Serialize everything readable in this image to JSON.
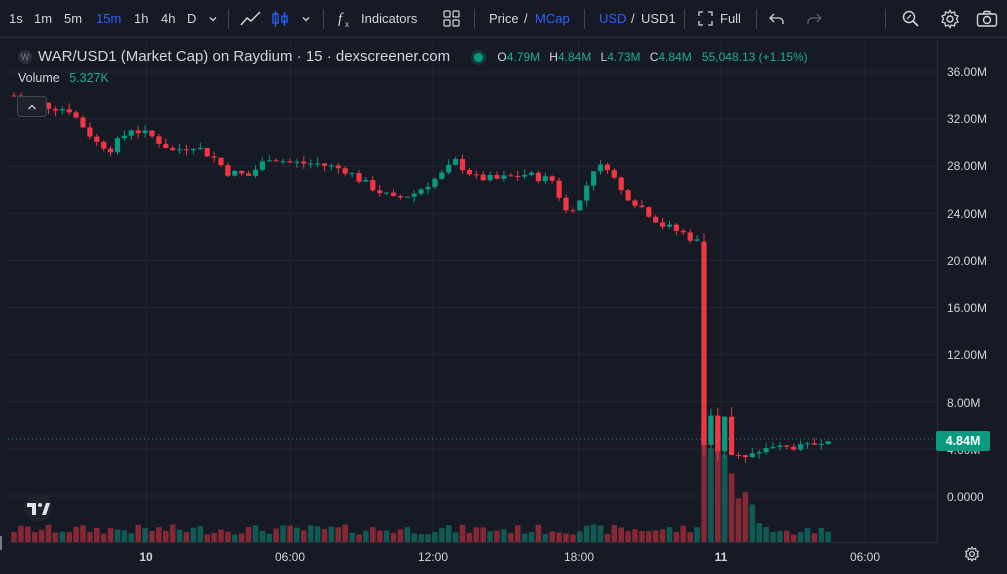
{
  "toolbar": {
    "intervals": [
      "1s",
      "1m",
      "5m",
      "15m",
      "1h",
      "4h",
      "D"
    ],
    "active_interval": "15m",
    "indicators_label": "Indicators",
    "price_label": "Price",
    "slash": "/",
    "mcap_label": "MCap",
    "usd_label": "USD",
    "usd1_label": "USD1",
    "full_label": "Full",
    "icons": [
      "chevron-down-icon",
      "line-chart-icon",
      "candlestick-icon",
      "chevron-down-icon",
      "fx-icon",
      "layout-icon",
      "fullscreen-icon",
      "undo-icon",
      "redo-icon",
      "search-zoom-icon",
      "gear-icon",
      "camera-icon"
    ]
  },
  "legend": {
    "symbol_icon": "W",
    "title": "WAR/USD1 (Market Cap) on Raydium · 15 · dexscreener.com",
    "o_label": "O",
    "o_value": "4.79M",
    "h_label": "H",
    "h_value": "4.84M",
    "l_label": "L",
    "l_value": "4.73M",
    "c_label": "C",
    "c_value": "4.84M",
    "change": "55,048.13 (+1.15%)"
  },
  "volume": {
    "label": "Volume",
    "value": "5.327K"
  },
  "price_axis": {
    "ticks": [
      "36.00M",
      "32.00M",
      "28.00M",
      "24.00M",
      "20.00M",
      "16.00M",
      "12.00M",
      "8.00M",
      "4.00M",
      "0.0000"
    ],
    "last_price": "4.84M"
  },
  "time_axis": {
    "ticks": [
      {
        "label": "10",
        "bold": true
      },
      {
        "label": "06:00",
        "bold": false
      },
      {
        "label": "12:00",
        "bold": false
      },
      {
        "label": "18:00",
        "bold": false
      },
      {
        "label": "11",
        "bold": true
      },
      {
        "label": "06:00",
        "bold": false
      }
    ]
  },
  "colors": {
    "up": "#089981",
    "down": "#f23645",
    "background": "#161a25",
    "grid": "#232632",
    "accent": "#2962ff"
  },
  "chart_data": {
    "type": "candlestick",
    "y_unit": "market cap (USD)",
    "ylim": [
      -2000000,
      38000000
    ],
    "interval": "15m",
    "x_start": "9th 20:00",
    "keypoints": [
      [
        0,
        34000000
      ],
      [
        5,
        33100000
      ],
      [
        8,
        32800000
      ],
      [
        12,
        30000000
      ],
      [
        14,
        29500000
      ],
      [
        17,
        31200000
      ],
      [
        20,
        30500000
      ],
      [
        23,
        29300000
      ],
      [
        26,
        29800000
      ],
      [
        29,
        28700000
      ],
      [
        31,
        27500000
      ],
      [
        34,
        27200000
      ],
      [
        37,
        28800000
      ],
      [
        40,
        28300000
      ],
      [
        44,
        28200000
      ],
      [
        48,
        27700000
      ],
      [
        51,
        26500000
      ],
      [
        55,
        25200000
      ],
      [
        58,
        25700000
      ],
      [
        62,
        27300000
      ],
      [
        64,
        28400000
      ],
      [
        67,
        27000000
      ],
      [
        70,
        26900000
      ],
      [
        74,
        27300000
      ],
      [
        78,
        26800000
      ],
      [
        80,
        24200000
      ],
      [
        82,
        25000000
      ],
      [
        84,
        27800000
      ],
      [
        86,
        28000000
      ],
      [
        88,
        25900000
      ],
      [
        91,
        24500000
      ],
      [
        94,
        23000000
      ],
      [
        97,
        22300000
      ],
      [
        99,
        21600000
      ],
      [
        100,
        4500000
      ],
      [
        101,
        7000000
      ],
      [
        102,
        4000000
      ],
      [
        103,
        6800000
      ],
      [
        104,
        3500000
      ],
      [
        106,
        3200000
      ],
      [
        108,
        3800000
      ],
      [
        110,
        4200000
      ],
      [
        113,
        4100000
      ],
      [
        116,
        4400000
      ],
      [
        118,
        4840000
      ]
    ],
    "volume_spikes": [
      [
        100,
        0.95
      ],
      [
        101,
        0.75
      ],
      [
        102,
        0.9
      ],
      [
        103,
        0.7
      ],
      [
        104,
        0.55
      ],
      [
        105,
        0.35
      ],
      [
        106,
        0.4
      ],
      [
        107,
        0.3
      ],
      [
        108,
        0.15
      ],
      [
        109,
        0.12
      ],
      [
        110,
        0.08
      ]
    ],
    "grid": true
  }
}
